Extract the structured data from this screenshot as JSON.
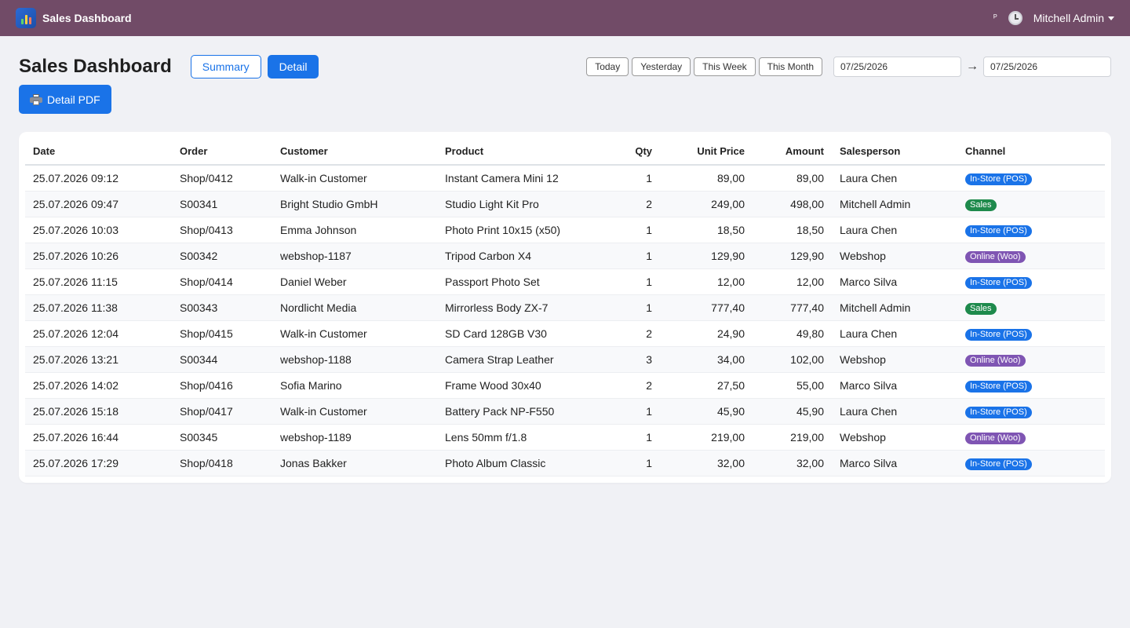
{
  "navbar": {
    "app_name": "Sales Dashboard",
    "small_label": "ᴾ",
    "user_name": "Mitchell Admin"
  },
  "header": {
    "title": "Sales Dashboard",
    "summary_label": "Summary",
    "detail_label": "Detail",
    "ranges": [
      "Today",
      "Yesterday",
      "This Week",
      "This Month"
    ],
    "date_from": "07/25/2026",
    "date_to": "07/25/2026",
    "arrow": "→"
  },
  "actions": {
    "pdf_label": "Detail PDF"
  },
  "table": {
    "columns": [
      "Date",
      "Order",
      "Customer",
      "Product",
      "Qty",
      "Unit Price",
      "Amount",
      "Salesperson",
      "Channel"
    ],
    "rows": [
      [
        "25.07.2026 09:12",
        "Shop/0412",
        "Walk-in Customer",
        "Instant Camera Mini 12",
        "1",
        "89,00",
        "89,00",
        "Laura Chen",
        "In-Store (POS)"
      ],
      [
        "25.07.2026 09:47",
        "S00341",
        "Bright Studio GmbH",
        "Studio Light Kit Pro",
        "2",
        "249,00",
        "498,00",
        "Mitchell Admin",
        "Sales"
      ],
      [
        "25.07.2026 10:03",
        "Shop/0413",
        "Emma Johnson",
        "Photo Print 10x15 (x50)",
        "1",
        "18,50",
        "18,50",
        "Laura Chen",
        "In-Store (POS)"
      ],
      [
        "25.07.2026 10:26",
        "S00342",
        "webshop-1187",
        "Tripod Carbon X4",
        "1",
        "129,90",
        "129,90",
        "Webshop",
        "Online (Woo)"
      ],
      [
        "25.07.2026 11:15",
        "Shop/0414",
        "Daniel Weber",
        "Passport Photo Set",
        "1",
        "12,00",
        "12,00",
        "Marco Silva",
        "In-Store (POS)"
      ],
      [
        "25.07.2026 11:38",
        "S00343",
        "Nordlicht Media",
        "Mirrorless Body ZX-7",
        "1",
        "777,40",
        "777,40",
        "Mitchell Admin",
        "Sales"
      ],
      [
        "25.07.2026 12:04",
        "Shop/0415",
        "Walk-in Customer",
        "SD Card 128GB V30",
        "2",
        "24,90",
        "49,80",
        "Laura Chen",
        "In-Store (POS)"
      ],
      [
        "25.07.2026 13:21",
        "S00344",
        "webshop-1188",
        "Camera Strap Leather",
        "3",
        "34,00",
        "102,00",
        "Webshop",
        "Online (Woo)"
      ],
      [
        "25.07.2026 14:02",
        "Shop/0416",
        "Sofia Marino",
        "Frame Wood 30x40",
        "2",
        "27,50",
        "55,00",
        "Marco Silva",
        "In-Store (POS)"
      ],
      [
        "25.07.2026 15:18",
        "Shop/0417",
        "Walk-in Customer",
        "Battery Pack NP-F550",
        "1",
        "45,90",
        "45,90",
        "Laura Chen",
        "In-Store (POS)"
      ],
      [
        "25.07.2026 16:44",
        "S00345",
        "webshop-1189",
        "Lens 50mm f/1.8",
        "1",
        "219,00",
        "219,00",
        "Webshop",
        "Online (Woo)"
      ],
      [
        "25.07.2026 17:29",
        "Shop/0418",
        "Jonas Bakker",
        "Photo Album Classic",
        "1",
        "32,00",
        "32,00",
        "Marco Silva",
        "In-Store (POS)"
      ]
    ]
  },
  "colors": {
    "navbar": "#714b67",
    "primary": "#1a73e8",
    "badge_pos": "#1a73e8",
    "badge_sales": "#1e8a4c",
    "badge_woo": "#7f55b3"
  }
}
